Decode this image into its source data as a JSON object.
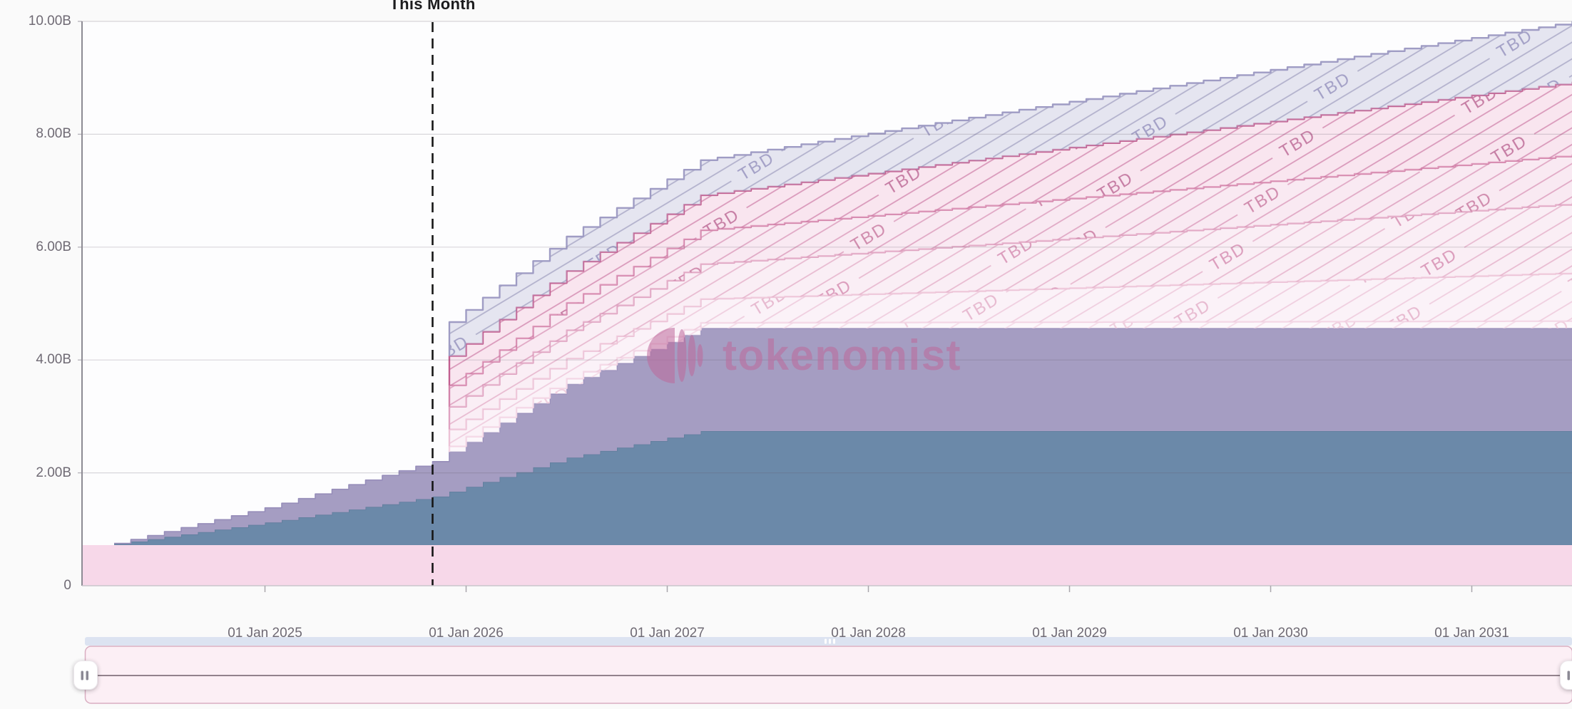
{
  "page": {
    "background": "#fafafa",
    "plot_background": "#fdfdfe"
  },
  "chart_data": {
    "type": "area",
    "variant": "stacked-stepped-monthly",
    "title": "",
    "unit": "billions",
    "total_supply_billions": 10,
    "month_index_zero_date": "2024-04",
    "months_total": 88,
    "watermark": {
      "text": "tokenomist",
      "color": "#be689b"
    },
    "annotation": {
      "label": "This Month",
      "month_index": 19,
      "line_color": "#161616"
    },
    "x_axis": {
      "ticks": [
        {
          "label": "01 Jan 2025",
          "month_index": 9
        },
        {
          "label": "01 Jan 2026",
          "month_index": 21
        },
        {
          "label": "01 Jan 2027",
          "month_index": 33
        },
        {
          "label": "01 Jan 2028",
          "month_index": 45
        },
        {
          "label": "01 Jan 2029",
          "month_index": 57
        },
        {
          "label": "01 Jan 2030",
          "month_index": 69
        },
        {
          "label": "01 Jan 2031",
          "month_index": 81
        }
      ]
    },
    "y_axis": {
      "ticks": [
        {
          "label": "0",
          "value": 0
        },
        {
          "label": "2.00B",
          "value": 2
        },
        {
          "label": "4.00B",
          "value": 4
        },
        {
          "label": "6.00B",
          "value": 6
        },
        {
          "label": "8.00B",
          "value": 8
        },
        {
          "label": "10.00B",
          "value": 10
        }
      ],
      "ylim": [
        0,
        10
      ],
      "grid": true
    },
    "legend": "none",
    "series": [
      {
        "id": "base-pink",
        "label": "",
        "style": "solid",
        "fill": "#f7d8e9",
        "line": "",
        "keypoints": [
          [
            -2,
            0.72
          ],
          [
            87,
            0.72
          ]
        ]
      },
      {
        "id": "solid-blue",
        "label": "",
        "style": "solid",
        "fill": "#6b89a9",
        "line": "#5f7d9c",
        "keypoints": [
          [
            0,
            0.02
          ],
          [
            9,
            0.4
          ],
          [
            19,
            0.86
          ],
          [
            27,
            1.55
          ],
          [
            35,
            2.02
          ],
          [
            87,
            2.02
          ]
        ]
      },
      {
        "id": "solid-purple",
        "label": "",
        "style": "solid",
        "fill": "#a59dc2",
        "line": "#968db9",
        "keypoints": [
          [
            0,
            0.01
          ],
          [
            9,
            0.26
          ],
          [
            19,
            0.62
          ],
          [
            27,
            1.3
          ],
          [
            35,
            1.82
          ],
          [
            87,
            1.82
          ]
        ]
      },
      {
        "id": "tbd-1",
        "label": "TBD",
        "style": "hatched",
        "fill": "rgba(252,242,248,0.55)",
        "hatch": "rgba(243,215,229,0.85)",
        "line": "#f2d3e3",
        "text": "#efcede",
        "keypoints": [
          [
            20,
            0.1
          ],
          [
            35,
            0.1
          ],
          [
            87,
            0.13
          ]
        ]
      },
      {
        "id": "tbd-2",
        "label": "TBD",
        "style": "hatched",
        "fill": "rgba(250,233,242,0.55)",
        "hatch": "rgba(236,197,216,0.8)",
        "line": "#ecc2d6",
        "text": "#e7bad0",
        "keypoints": [
          [
            20,
            0.3
          ],
          [
            35,
            0.42
          ],
          [
            87,
            0.85
          ]
        ]
      },
      {
        "id": "tbd-3",
        "label": "TBD",
        "style": "hatched",
        "fill": "rgba(248,224,236,0.5)",
        "hatch": "rgba(225,168,196,0.75)",
        "line": "#dfa3c1",
        "text": "#db9cbc",
        "keypoints": [
          [
            20,
            0.4
          ],
          [
            35,
            0.62
          ],
          [
            87,
            1.23
          ]
        ]
      },
      {
        "id": "tbd-4",
        "label": "TBD",
        "style": "hatched",
        "fill": "rgba(246,214,230,0.5)",
        "hatch": "rgba(214,140,176,0.7)",
        "line": "#d384aa",
        "text": "#d08bad",
        "keypoints": [
          [
            20,
            0.38
          ],
          [
            35,
            0.6
          ],
          [
            87,
            0.86
          ]
        ]
      },
      {
        "id": "tbd-5",
        "label": "TBD",
        "style": "hatched",
        "fill": "rgba(243,200,221,0.45)",
        "hatch": "rgba(200,111,156,0.65)",
        "line": "#c25f90",
        "text": "#c67da4",
        "keypoints": [
          [
            20,
            0.52
          ],
          [
            35,
            0.62
          ],
          [
            87,
            1.29
          ]
        ]
      },
      {
        "id": "tbd-6",
        "label": "TBD",
        "style": "hatched",
        "fill": "rgba(205,205,226,0.5)",
        "hatch": "rgba(143,141,180,0.6)",
        "line": "#9f9cc4",
        "text": "#a3a0c6",
        "keypoints": [
          [
            20,
            0.6
          ],
          [
            35,
            0.62
          ],
          [
            87,
            1.07
          ]
        ]
      }
    ],
    "grid_color": "rgba(99,93,110,0.24)",
    "axis_line_color": "#8d8b94",
    "bottom_axis_color": "#c9c6cb",
    "tick_mark_color": "#a9a6ad"
  },
  "navigator": {
    "track_color": "#dce3f1",
    "track_grip_color": "#ffffff",
    "panel_fill": "#fceff5",
    "panel_border": "#d9aec1",
    "mid_line_color": "#6f5e69",
    "handle_fill": "#ffffff",
    "handle_border": "#ebe7eb",
    "grip_color": "#8b8994"
  }
}
